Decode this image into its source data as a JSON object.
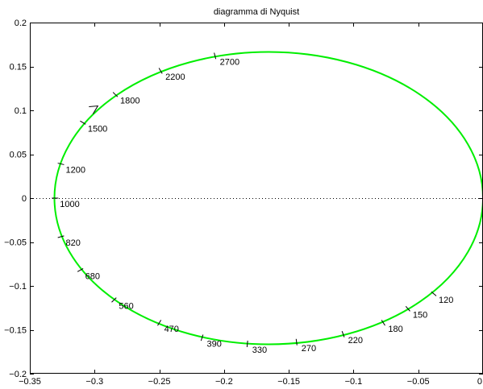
{
  "chart_data": {
    "type": "line",
    "title": "diagramma di Nyquist",
    "xlabel": "",
    "ylabel": "",
    "xlim": [
      -0.35,
      0
    ],
    "ylim": [
      -0.2,
      0.2
    ],
    "xticks": [
      -0.35,
      -0.3,
      -0.25,
      -0.2,
      -0.15,
      -0.1,
      -0.05,
      0
    ],
    "xtick_labels": [
      "−0.35",
      "−0.3",
      "−0.25",
      "−0.2",
      "−0.15",
      "−0.1",
      "−0.05",
      "0"
    ],
    "yticks": [
      -0.2,
      -0.15,
      -0.1,
      -0.05,
      0,
      0.05,
      0.1,
      0.15,
      0.2
    ],
    "ytick_labels": [
      "−0.2",
      "−0.15",
      "−0.1",
      "−0.05",
      "0",
      "0.05",
      "0.1",
      "0.15",
      "0.2"
    ],
    "grid": false,
    "curve": {
      "kind": "ellipse",
      "center": [
        -0.1655,
        0
      ],
      "semi_axis_x": 0.1655,
      "semi_axis_y": 0.1665,
      "color": "#00ee00"
    },
    "zero_line": {
      "y": 0,
      "style": "dotted",
      "color": "#000000"
    },
    "arrow": {
      "at": [
        -0.2975,
        0.105
      ],
      "direction": "counterclockwise"
    },
    "frequency_points": [
      {
        "label": "120",
        "x": -0.038,
        "y": -0.109
      },
      {
        "label": "150",
        "x": -0.058,
        "y": -0.126
      },
      {
        "label": "180",
        "x": -0.077,
        "y": -0.142
      },
      {
        "label": "220",
        "x": -0.108,
        "y": -0.155
      },
      {
        "label": "270",
        "x": -0.144,
        "y": -0.164
      },
      {
        "label": "330",
        "x": -0.182,
        "y": -0.166
      },
      {
        "label": "390",
        "x": -0.217,
        "y": -0.159
      },
      {
        "label": "470",
        "x": -0.25,
        "y": -0.142
      },
      {
        "label": "560",
        "x": -0.285,
        "y": -0.116
      },
      {
        "label": "680",
        "x": -0.311,
        "y": -0.082
      },
      {
        "label": "820",
        "x": -0.326,
        "y": -0.044
      },
      {
        "label": "1000",
        "x": -0.3305,
        "y": 0.0
      },
      {
        "label": "1200",
        "x": -0.326,
        "y": 0.039
      },
      {
        "label": "1500",
        "x": -0.309,
        "y": 0.086
      },
      {
        "label": "1800",
        "x": -0.284,
        "y": 0.118
      },
      {
        "label": "2200",
        "x": -0.249,
        "y": 0.145
      },
      {
        "label": "2700",
        "x": -0.207,
        "y": 0.162
      }
    ],
    "colors": {
      "curve": "#00ee00",
      "axes": "#000000",
      "background": "#ffffff"
    }
  }
}
